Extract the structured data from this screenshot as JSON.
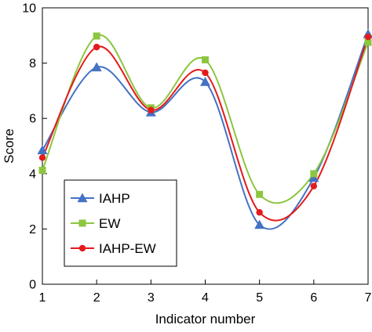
{
  "chart_data": {
    "type": "line",
    "title": "",
    "xlabel": "Indicator number",
    "ylabel": "Score",
    "x": [
      1,
      2,
      3,
      4,
      5,
      6,
      7
    ],
    "xlim": [
      1,
      7
    ],
    "ylim": [
      0,
      10
    ],
    "xticks": [
      1,
      2,
      3,
      4,
      5,
      6,
      7
    ],
    "yticks": [
      0,
      2,
      4,
      6,
      8,
      10
    ],
    "grid": false,
    "smooth": true,
    "legend": {
      "placement": "lower-left",
      "entries": [
        "IAHP",
        "EW",
        "IAHP-EW"
      ]
    },
    "series": [
      {
        "name": "IAHP",
        "color": "#4472c4",
        "marker": "triangle",
        "values": [
          4.85,
          7.85,
          6.22,
          7.32,
          2.15,
          3.85,
          9.05
        ]
      },
      {
        "name": "EW",
        "color": "#8cc63f",
        "marker": "square",
        "values": [
          4.12,
          8.98,
          6.38,
          8.12,
          3.25,
          4.0,
          8.75
        ]
      },
      {
        "name": "IAHP-EW",
        "color": "#e41a1c",
        "marker": "circle",
        "values": [
          4.58,
          8.58,
          6.3,
          7.65,
          2.6,
          3.55,
          8.95
        ]
      }
    ]
  }
}
